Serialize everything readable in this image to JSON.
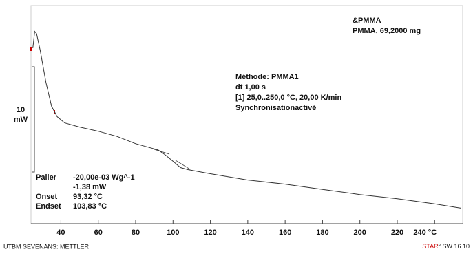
{
  "chart_data": {
    "type": "line",
    "sample": [
      "&PMMA",
      "PMMA, 69,2000 mg"
    ],
    "method": [
      "Méthode: PMMA1",
      "dt 1,00 s",
      "[1] 25,0..250,0 °C, 20,00 K/min",
      "Synchronisationactivé"
    ],
    "scale_label": [
      "10",
      "mW"
    ],
    "results": [
      [
        "Palier",
        "-20,00e-03 Wg^-1"
      ],
      [
        "",
        "-1,38 mW"
      ],
      [
        "Onset",
        "93,32 °C"
      ],
      [
        "Endset",
        "103,83 °C"
      ]
    ],
    "footer_left": "UTBM SEVENANS: METTLER",
    "footer_right": [
      "STAR",
      "e",
      " SW 16.10"
    ],
    "x": [
      25,
      26,
      27,
      29,
      32,
      35,
      38,
      42,
      50,
      60,
      70,
      80,
      86,
      92,
      96,
      100,
      104,
      108,
      120,
      140,
      160,
      180,
      200,
      220,
      240,
      254
    ],
    "values": [
      16.9,
      18.5,
      18.3,
      16.6,
      13.6,
      11.3,
      10.3,
      9.7,
      9.3,
      8.9,
      8.4,
      7.7,
      7.4,
      7.1,
      6.6,
      6.0,
      5.4,
      5.2,
      4.8,
      4.2,
      3.8,
      3.3,
      2.8,
      2.4,
      1.9,
      1.5
    ],
    "color": "#333333",
    "xlim": [
      24,
      255
    ],
    "ylim": [
      0,
      21
    ],
    "xticks": [
      40,
      60,
      80,
      100,
      120,
      140,
      160,
      180,
      200,
      220,
      {
        "value": 240,
        "label": "240 °C"
      }
    ]
  }
}
